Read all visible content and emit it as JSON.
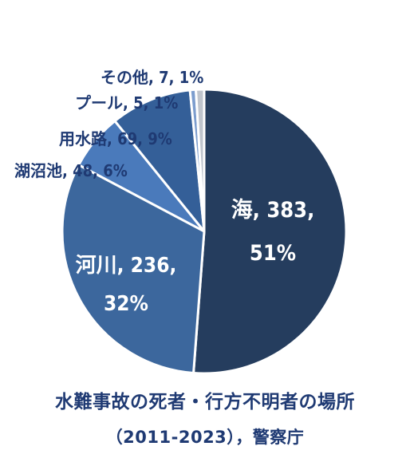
{
  "chart_data": {
    "type": "pie",
    "title_lines": [
      "水難事故の死者・行方不明者の場所",
      "（2011-2023），警察庁"
    ],
    "slices": [
      {
        "label": "海",
        "value": 383,
        "percent": "51%",
        "color": "#253d5e"
      },
      {
        "label": "河川",
        "value": 236,
        "percent": "32%",
        "color": "#3c679d"
      },
      {
        "label": "湖沼池",
        "value": 48,
        "percent": "6%",
        "color": "#4a7abb"
      },
      {
        "label": "用水路",
        "value": 69,
        "percent": "9%",
        "color": "#345f98"
      },
      {
        "label": "プール",
        "value": 5,
        "percent": "1%",
        "color": "#7c9dce"
      },
      {
        "label": "その他",
        "value": 7,
        "percent": "1%",
        "color": "#bfc4cc"
      }
    ],
    "slice_texts": [
      "海, 383,",
      "51%",
      "河川, 236,",
      "32%",
      "湖沼池, 48, 6%",
      "用水路, 69, 9%",
      "プール, 5, 1%",
      "その他, 7, 1%"
    ],
    "legend": "none"
  }
}
